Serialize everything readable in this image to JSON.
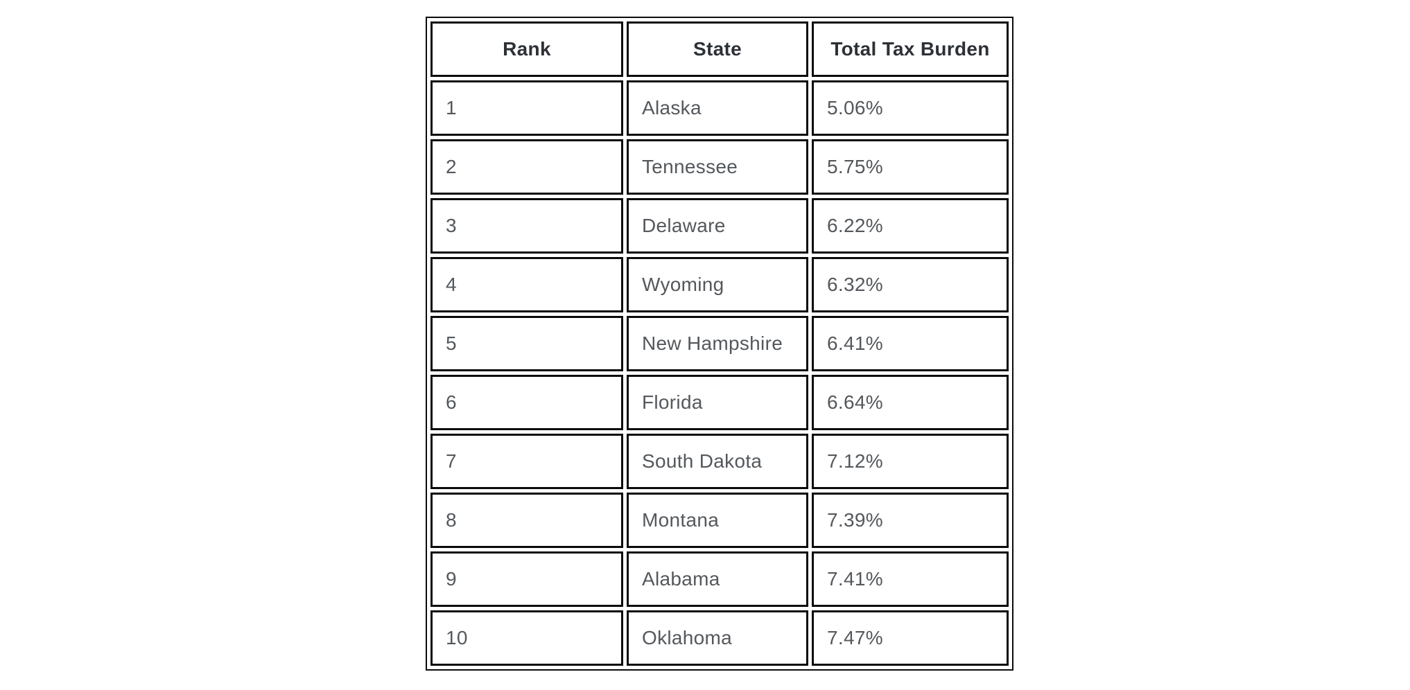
{
  "colors": {
    "border": "#0a0a0a",
    "header_text": "#2d3136",
    "body_text": "#54585c",
    "background": "#ffffff"
  },
  "table": {
    "headers": [
      "Rank",
      "State",
      "Total Tax Burden"
    ],
    "rows": [
      {
        "rank": "1",
        "state": "Alaska",
        "burden": "5.06%"
      },
      {
        "rank": "2",
        "state": "Tennessee",
        "burden": "5.75%"
      },
      {
        "rank": "3",
        "state": "Delaware",
        "burden": "6.22%"
      },
      {
        "rank": "4",
        "state": "Wyoming",
        "burden": "6.32%"
      },
      {
        "rank": "5",
        "state": "New Hampshire",
        "burden": "6.41%"
      },
      {
        "rank": "6",
        "state": "Florida",
        "burden": "6.64%"
      },
      {
        "rank": "7",
        "state": "South Dakota",
        "burden": "7.12%"
      },
      {
        "rank": "8",
        "state": "Montana",
        "burden": "7.39%"
      },
      {
        "rank": "9",
        "state": "Alabama",
        "burden": "7.41%"
      },
      {
        "rank": "10",
        "state": "Oklahoma",
        "burden": "7.47%"
      }
    ]
  },
  "chart_data": {
    "type": "table",
    "title": "",
    "columns": [
      "Rank",
      "State",
      "Total Tax Burden"
    ],
    "categories": [
      "Alaska",
      "Tennessee",
      "Delaware",
      "Wyoming",
      "New Hampshire",
      "Florida",
      "South Dakota",
      "Montana",
      "Alabama",
      "Oklahoma"
    ],
    "values": [
      5.06,
      5.75,
      6.22,
      6.32,
      6.41,
      6.64,
      7.12,
      7.39,
      7.41,
      7.47
    ]
  }
}
